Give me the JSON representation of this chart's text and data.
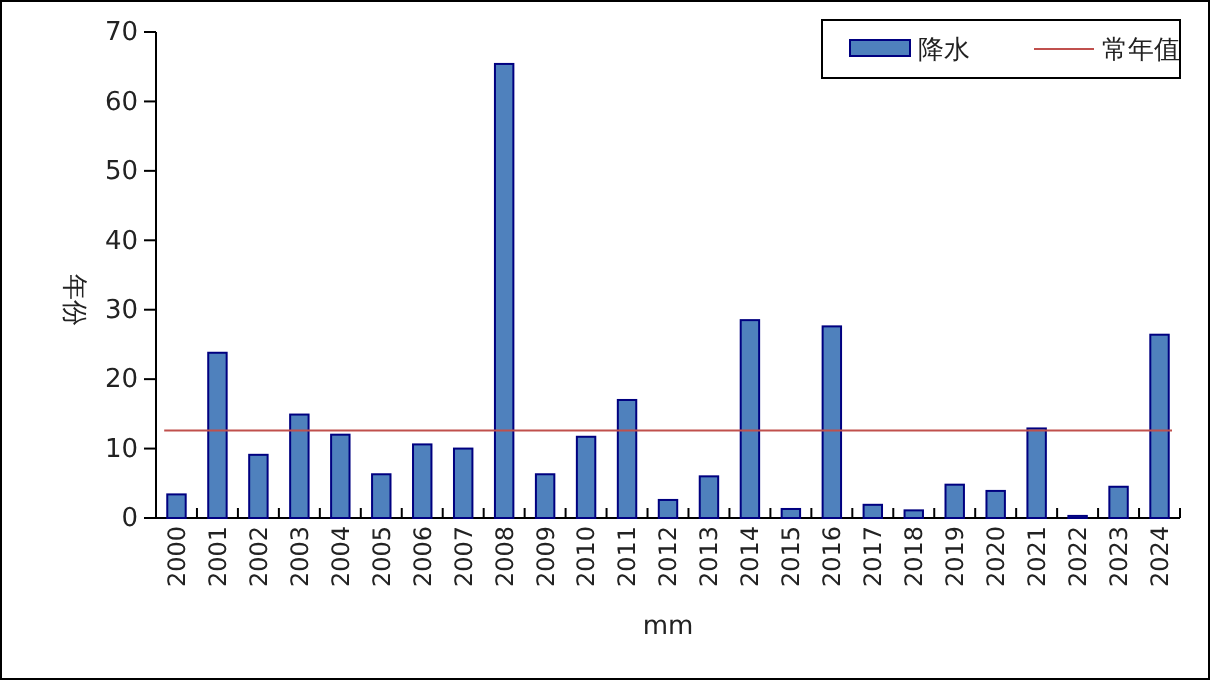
{
  "chart_data": {
    "type": "bar",
    "xlabel": "mm",
    "ylabel": "年份",
    "categories": [
      "2000",
      "2001",
      "2002",
      "2003",
      "2004",
      "2005",
      "2006",
      "2007",
      "2008",
      "2009",
      "2010",
      "2011",
      "2012",
      "2013",
      "2014",
      "2015",
      "2016",
      "2017",
      "2018",
      "2019",
      "2020",
      "2021",
      "2022",
      "2023",
      "2024"
    ],
    "series": [
      {
        "name": "降水",
        "color": "#4f81bd",
        "values": [
          3.4,
          23.8,
          9.1,
          14.9,
          12.0,
          6.3,
          10.6,
          10.0,
          65.4,
          6.3,
          11.7,
          17.0,
          2.6,
          6.0,
          28.5,
          1.3,
          27.6,
          1.9,
          1.1,
          4.8,
          3.9,
          12.9,
          0.3,
          4.5,
          26.4
        ]
      }
    ],
    "ref_lines": [
      {
        "axis": "y",
        "value": 12.6,
        "label": "常年值",
        "color": "#c0504d"
      }
    ],
    "ylim": [
      0,
      70
    ],
    "yticks": [
      0,
      10,
      20,
      30,
      40,
      50,
      60,
      70
    ],
    "grid": false,
    "legend": "top right"
  }
}
